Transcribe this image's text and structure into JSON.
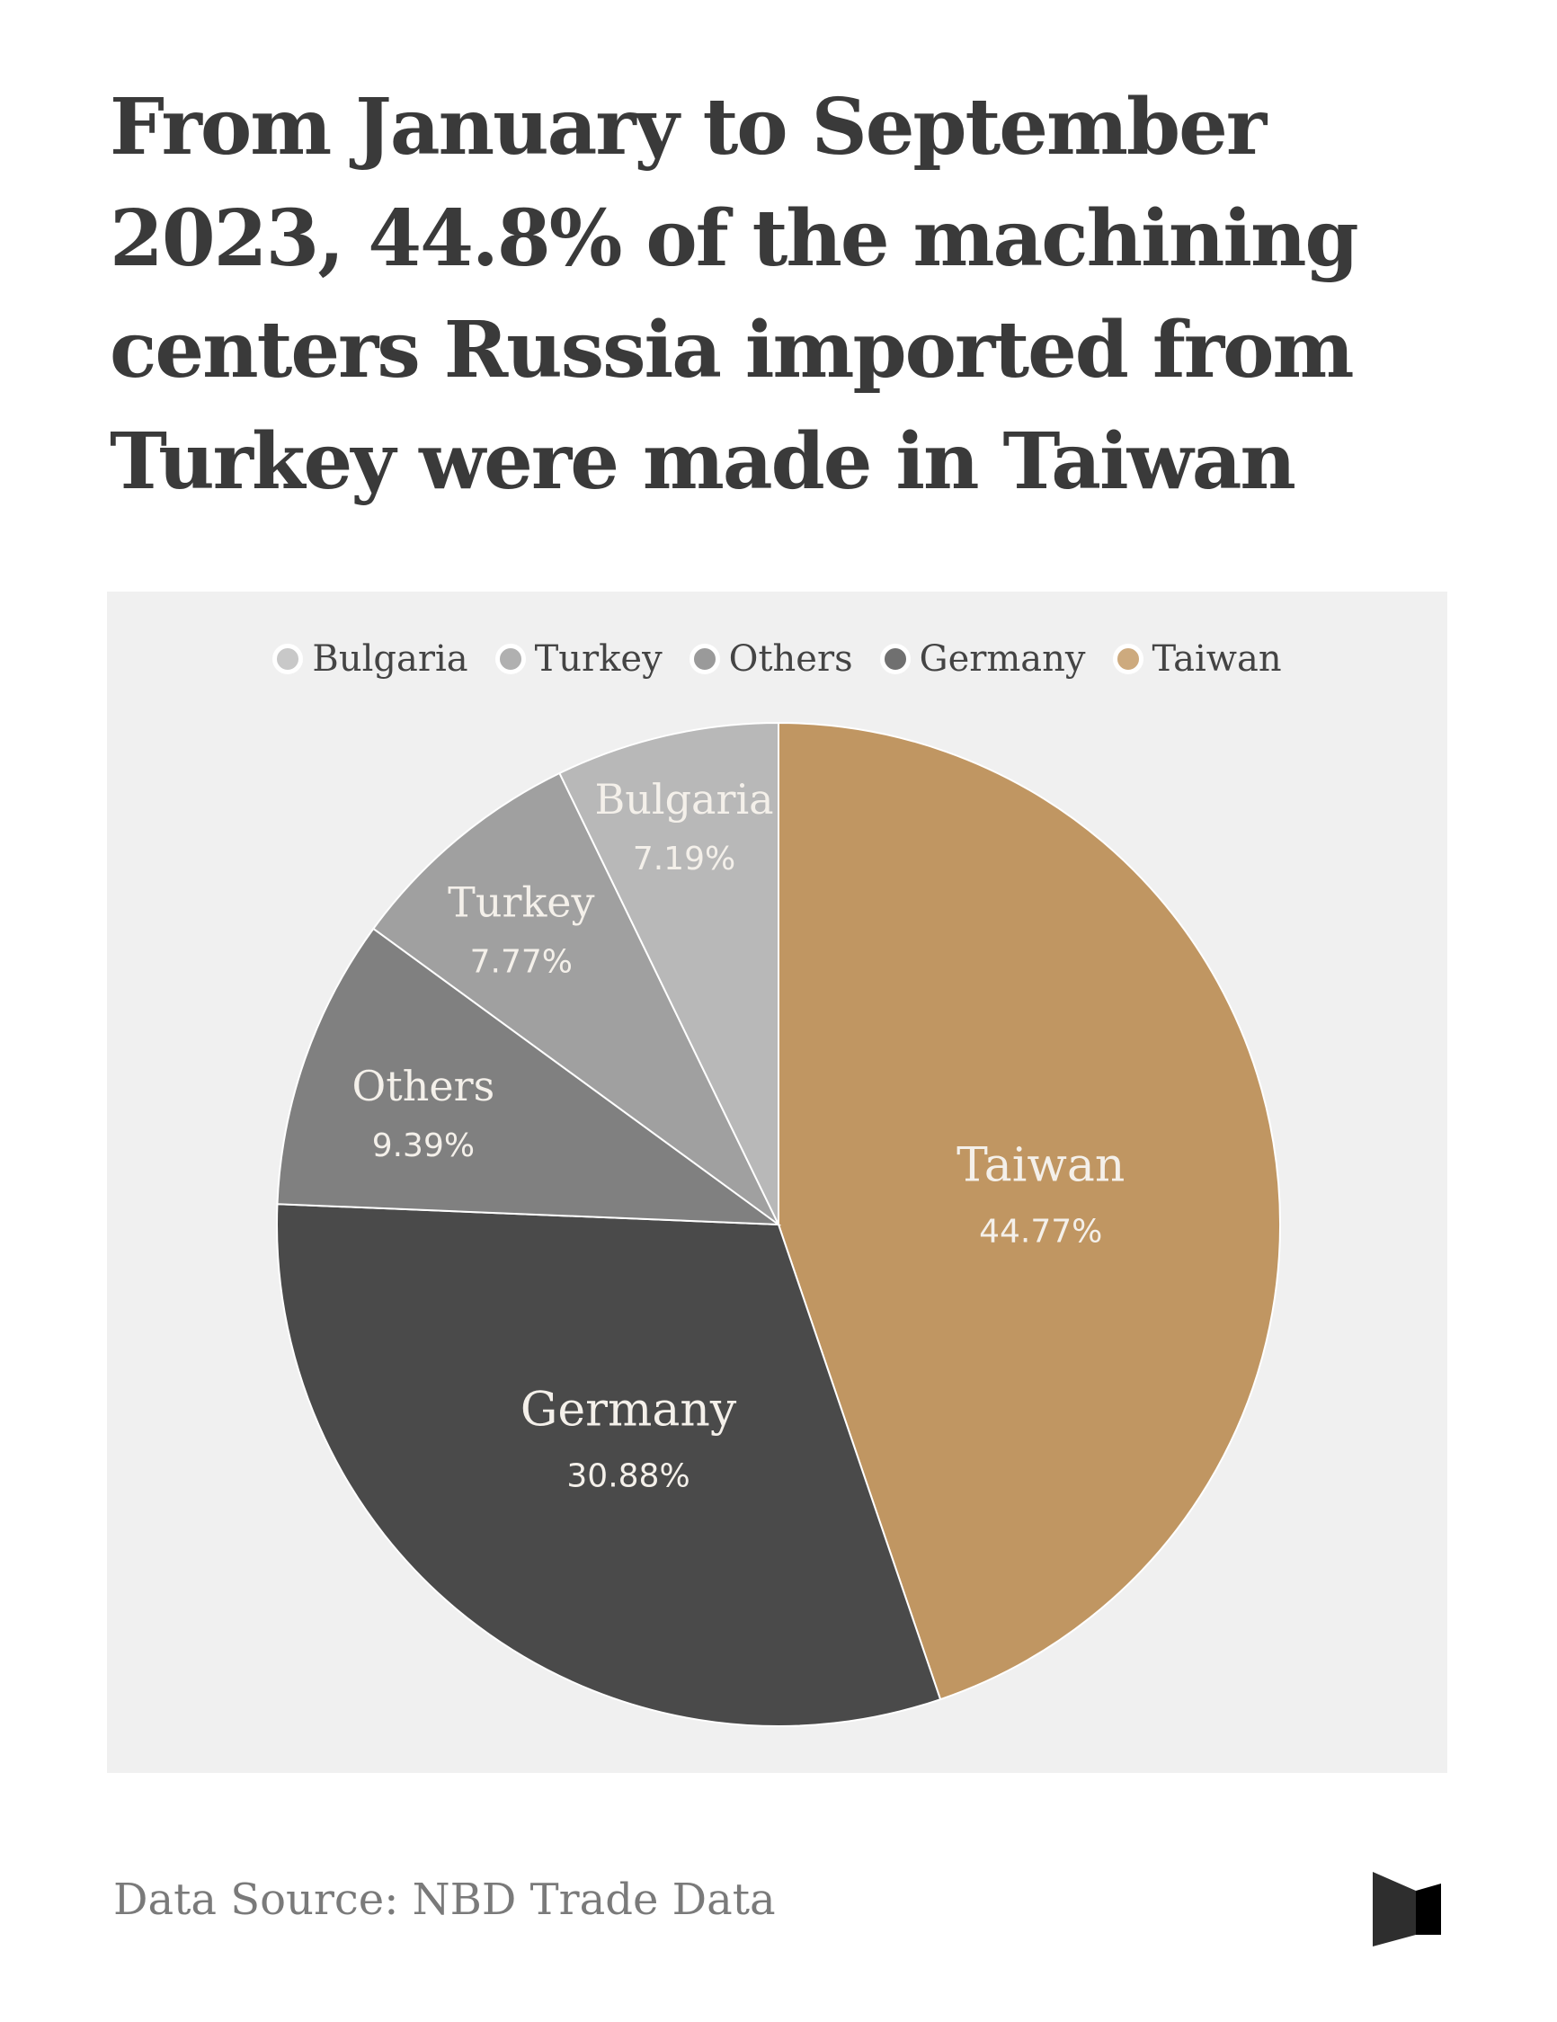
{
  "chart_data": {
    "type": "pie",
    "title": "From January to September 2023, 44.8% of the machining centers Russia imported from Turkey were made in Taiwan",
    "legend_position": "top",
    "legend": [
      {
        "name": "Bulgaria",
        "color": "#c8c8c8"
      },
      {
        "name": "Turkey",
        "color": "#b0b0b0"
      },
      {
        "name": "Others",
        "color": "#9a9a9a"
      },
      {
        "name": "Germany",
        "color": "#707070"
      },
      {
        "name": "Taiwan",
        "color": "#cdaa7e"
      }
    ],
    "slices": [
      {
        "name": "Taiwan",
        "value": 44.77,
        "label": "44.77%",
        "color": "#c09662"
      },
      {
        "name": "Germany",
        "value": 30.88,
        "label": "30.88%",
        "color": "#4a4a4a"
      },
      {
        "name": "Others",
        "value": 9.39,
        "label": "9.39%",
        "color": "#808080"
      },
      {
        "name": "Turkey",
        "value": 7.77,
        "label": "7.77%",
        "color": "#a0a0a0"
      },
      {
        "name": "Bulgaria",
        "value": 7.19,
        "label": "7.19%",
        "color": "#b8b8b8"
      }
    ]
  },
  "footer": {
    "source": "Data Source: NBD Trade Data",
    "logo": "logo"
  }
}
